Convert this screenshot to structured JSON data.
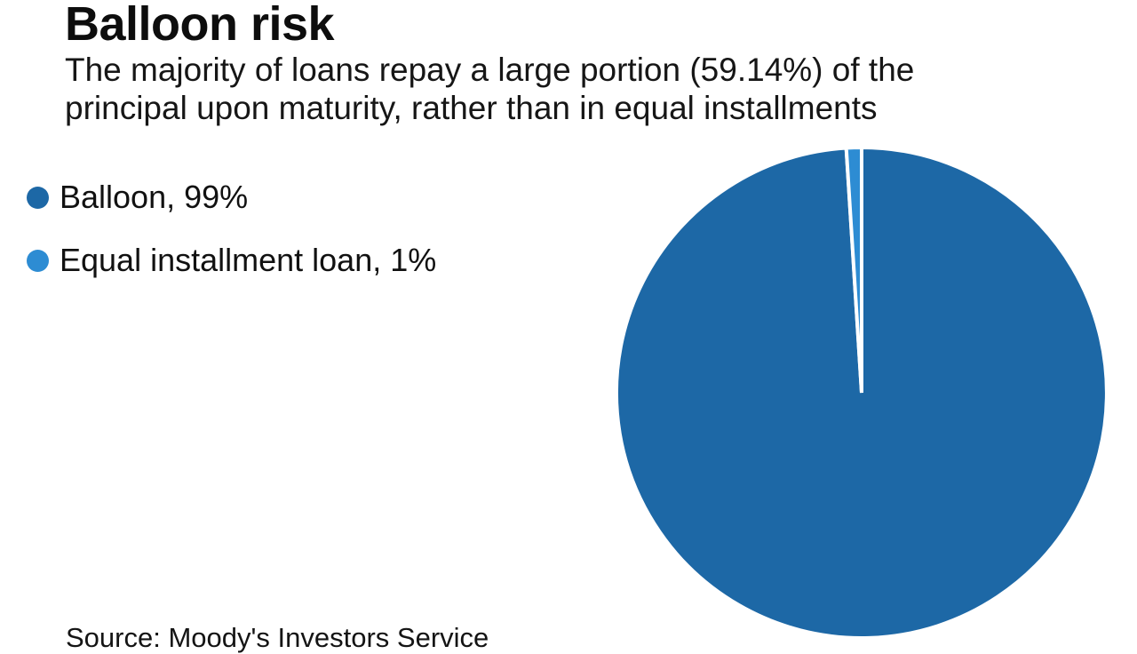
{
  "header": {
    "title": "Balloon risk",
    "subtitle_line1": "The majority of loans repay a large portion (59.14%) of the",
    "subtitle_line2": "principal upon maturity, rather than in equal installments"
  },
  "legend": {
    "items": [
      {
        "label": "Balloon, 99%",
        "color": "#1d68a6"
      },
      {
        "label": "Equal installment loan, 1%",
        "color": "#2d8cd3"
      }
    ]
  },
  "footer": {
    "source": "Source: Moody's Investors Service"
  },
  "chart_data": {
    "type": "pie",
    "title": "Balloon risk",
    "subtitle": "The majority of loans repay a large portion (59.14%) of the principal upon maturity, rather than in equal installments",
    "labels": [
      "Balloon",
      "Equal installment loan"
    ],
    "values": [
      99,
      1
    ],
    "unit": "%",
    "colors": [
      "#1d68a6",
      "#2d8cd3"
    ],
    "slice_border_color": "#ffffff",
    "start_angle_deg": 0,
    "direction": "clockwise",
    "legend_position": "left",
    "source": "Source: Moody's Investors Service"
  }
}
